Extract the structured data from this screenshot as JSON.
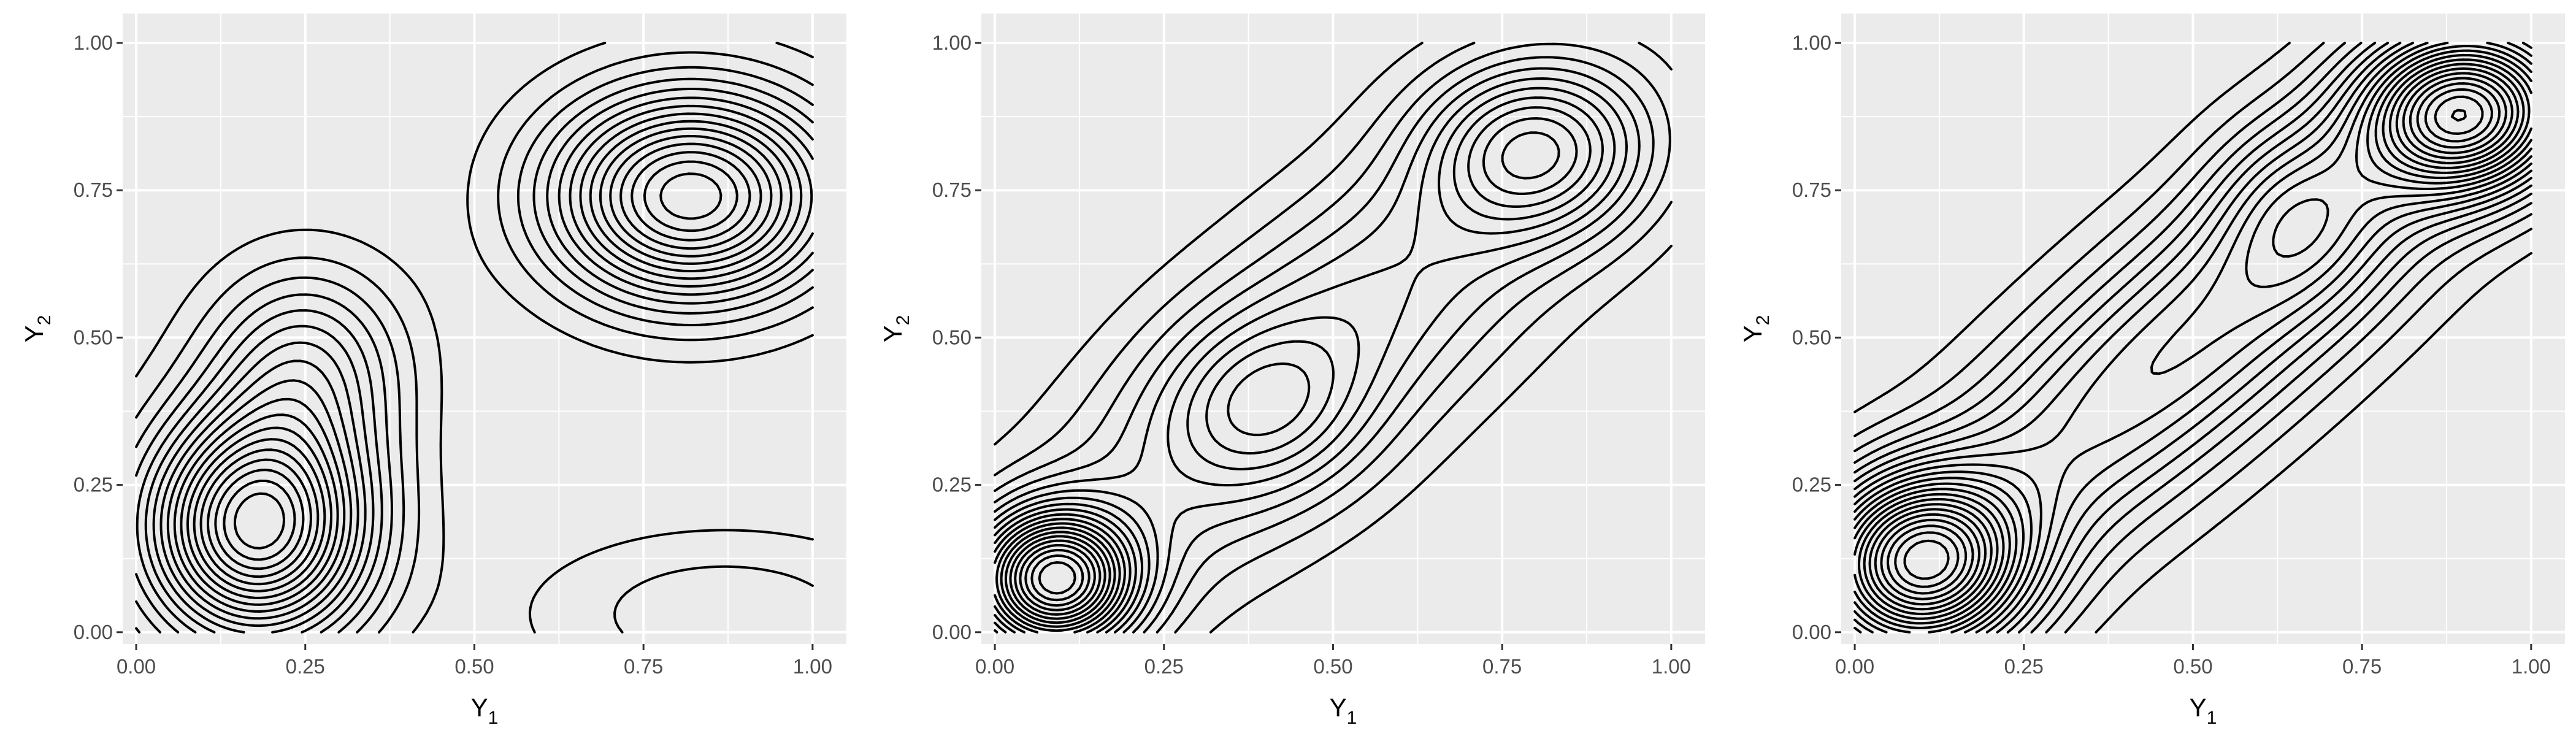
{
  "chart_data": [
    {
      "type": "contour",
      "panel": 1,
      "xlabel": "Y",
      "xlabel_sub": "1",
      "ylabel": "Y",
      "ylabel_sub": "2",
      "xlim": [
        -0.02,
        1.05
      ],
      "ylim": [
        -0.02,
        1.05
      ],
      "x_ticks": [
        "0.00",
        "0.25",
        "0.50",
        "0.75",
        "1.00"
      ],
      "y_ticks": [
        "0.00",
        "0.25",
        "0.50",
        "0.75",
        "1.00"
      ],
      "modes": [
        {
          "x": 0.18,
          "y": 0.18,
          "height": 1.0,
          "sx": 0.11,
          "sy": 0.13
        },
        {
          "x": 0.82,
          "y": 0.74,
          "height": 0.85,
          "sx": 0.14,
          "sy": 0.12
        },
        {
          "x": 0.25,
          "y": 0.45,
          "height": 0.35,
          "sx": 0.1,
          "sy": 0.12
        },
        {
          "x": 0.87,
          "y": 0.03,
          "height": 0.15,
          "sx": 0.2,
          "sy": 0.1
        }
      ],
      "contour_levels": 18,
      "grid": true
    },
    {
      "type": "contour",
      "panel": 2,
      "xlabel": "Y",
      "xlabel_sub": "1",
      "ylabel": "Y",
      "ylabel_sub": "2",
      "xlim": [
        -0.02,
        1.05
      ],
      "ylim": [
        -0.02,
        1.05
      ],
      "x_ticks": [
        "0.00",
        "0.25",
        "0.50",
        "0.75",
        "1.00"
      ],
      "y_ticks": [
        "0.00",
        "0.25",
        "0.50",
        "0.75",
        "1.00"
      ],
      "modes": [
        {
          "x": 0.09,
          "y": 0.09,
          "height": 1.0,
          "sx": 0.08,
          "sy": 0.08
        },
        {
          "x": 0.8,
          "y": 0.82,
          "height": 0.45,
          "sx": 0.11,
          "sy": 0.1
        },
        {
          "x": 0.48,
          "y": 0.48,
          "height": 0.35,
          "sx": 0.3,
          "sy": 0.3,
          "rho": 0.8
        },
        {
          "x": 0.4,
          "y": 0.38,
          "height": 0.2,
          "sx": 0.1,
          "sy": 0.1
        }
      ],
      "contour_levels": 20,
      "grid": true
    },
    {
      "type": "contour",
      "panel": 3,
      "xlabel": "Y",
      "xlabel_sub": "1",
      "ylabel": "Y",
      "ylabel_sub": "2",
      "xlim": [
        -0.02,
        1.05
      ],
      "ylim": [
        -0.02,
        1.05
      ],
      "x_ticks": [
        "0.00",
        "0.25",
        "0.50",
        "0.75",
        "1.00"
      ],
      "y_ticks": [
        "0.00",
        "0.25",
        "0.50",
        "0.75",
        "1.00"
      ],
      "modes": [
        {
          "x": 0.1,
          "y": 0.12,
          "height": 1.0,
          "sx": 0.1,
          "sy": 0.1
        },
        {
          "x": 0.9,
          "y": 0.88,
          "height": 0.95,
          "sx": 0.1,
          "sy": 0.09
        },
        {
          "x": 0.5,
          "y": 0.5,
          "height": 0.5,
          "sx": 0.35,
          "sy": 0.35,
          "rho": 0.88
        },
        {
          "x": 0.65,
          "y": 0.72,
          "height": 0.2,
          "sx": 0.08,
          "sy": 0.1
        }
      ],
      "contour_levels": 22,
      "grid": true
    }
  ]
}
